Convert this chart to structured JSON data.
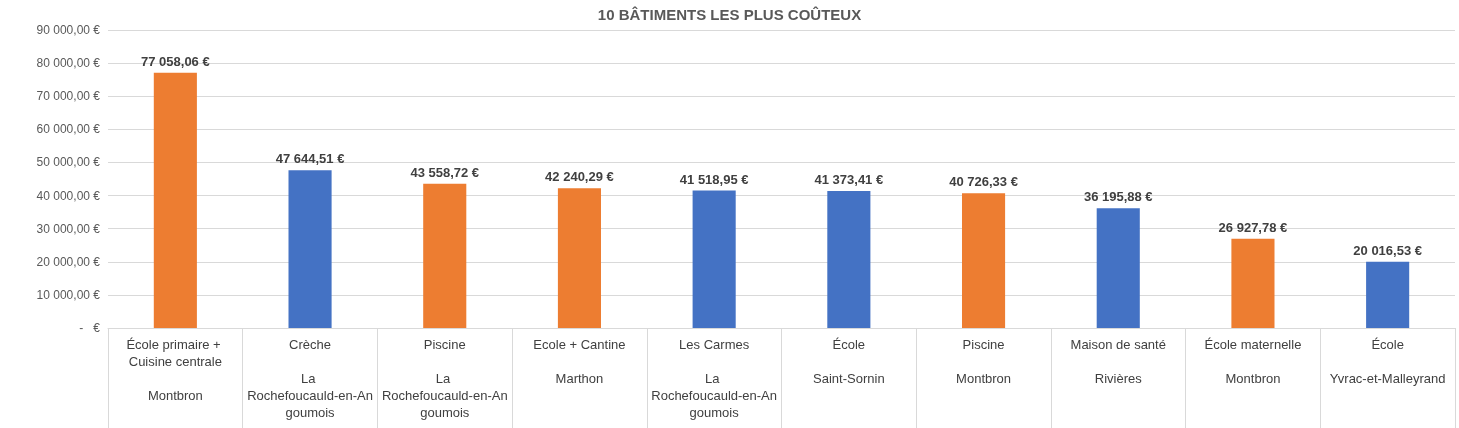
{
  "chart_data": {
    "type": "bar",
    "title": "10 BÂTIMENTS LES PLUS COÛTEUX",
    "categories": [
      "École primaire + Cuisine centrale\nMontbron",
      "Crèche\nLa Rochefoucauld-en-Angoumois",
      "Piscine\nLa Rochefoucauld-en-Angoumois",
      "Ecole + Cantine\nMarthon",
      "Les Carmes\nLa Rochefoucauld-en-Angoumois",
      "École\nSaint-Sornin",
      "Piscine\nMontbron",
      "Maison de santé\nRivières",
      "École maternelle\nMontbron",
      "École\nYvrac-et-Malleyrand"
    ],
    "values": [
      77058.06,
      47644.51,
      43558.72,
      42240.29,
      41518.95,
      41373.41,
      40726.33,
      36195.88,
      26927.78,
      20016.53
    ],
    "colors": [
      "#ed7d31",
      "#4472c4",
      "#ed7d31",
      "#ed7d31",
      "#4472c4",
      "#4472c4",
      "#ed7d31",
      "#4472c4",
      "#ed7d31",
      "#4472c4"
    ],
    "value_labels": [
      "77 058,06 €",
      "47 644,51 €",
      "43 558,72 €",
      "42 240,29 €",
      "41 518,95 €",
      "41 373,41 €",
      "40 726,33 €",
      "36 195,88 €",
      "26 927,78 €",
      "20 016,53 €"
    ],
    "ylim": [
      0,
      90000
    ],
    "yticks": [
      {
        "value": 0,
        "label": "-   €"
      },
      {
        "value": 10000,
        "label": "10 000,00 €"
      },
      {
        "value": 20000,
        "label": "20 000,00 €"
      },
      {
        "value": 30000,
        "label": "30 000,00 €"
      },
      {
        "value": 40000,
        "label": "40 000,00 €"
      },
      {
        "value": 50000,
        "label": "50 000,00 €"
      },
      {
        "value": 60000,
        "label": "60 000,00 €"
      },
      {
        "value": 70000,
        "label": "70 000,00 €"
      },
      {
        "value": 80000,
        "label": "80 000,00 €"
      },
      {
        "value": 90000,
        "label": "90 000,00 €"
      }
    ],
    "grid": "y"
  }
}
